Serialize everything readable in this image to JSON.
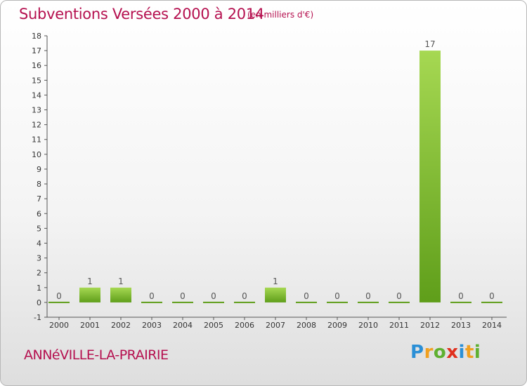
{
  "title": "Subventions Versées 2000 à 2014",
  "unit_note": "(en milliers d'€)",
  "commune": "ANNéVILLE-LA-PRAIRIE",
  "brand": {
    "letters": [
      "P",
      "r",
      "o",
      "x",
      "i",
      "t",
      "i"
    ],
    "colors": [
      "#2a8fd6",
      "#f0a020",
      "#5fb030",
      "#e0301e",
      "#2a8fd6",
      "#f0a020",
      "#5fb030"
    ]
  },
  "colors": {
    "text_accent": "#b5104f",
    "bar_top": "#a6d852",
    "bar_bottom": "#5f9e1a",
    "axis": "#555555"
  },
  "chart_data": {
    "type": "bar",
    "categories": [
      "2000",
      "2001",
      "2002",
      "2003",
      "2004",
      "2005",
      "2006",
      "2007",
      "2008",
      "2009",
      "2010",
      "2011",
      "2012",
      "2013",
      "2014"
    ],
    "values": [
      0,
      1,
      1,
      0,
      0,
      0,
      0,
      1,
      0,
      0,
      0,
      0,
      17,
      0,
      0
    ],
    "ylim": [
      -1,
      18
    ],
    "yticks": [
      -1,
      0,
      1,
      2,
      3,
      4,
      5,
      6,
      7,
      8,
      9,
      10,
      11,
      12,
      13,
      14,
      15,
      16,
      17,
      18
    ],
    "grid": false,
    "legend": "none"
  }
}
